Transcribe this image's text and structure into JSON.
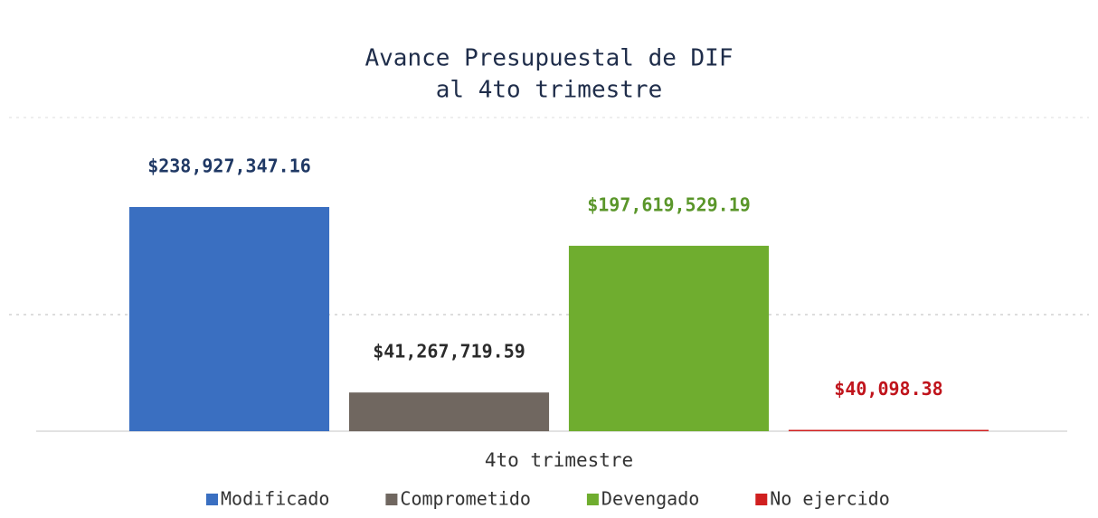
{
  "chart_data": {
    "type": "bar",
    "title": [
      "Avance Presupuestal de DIF",
      "al 4to trimestre"
    ],
    "categories": [
      "4to trimestre"
    ],
    "series": [
      {
        "name": "Modificado",
        "color": "#3a6fc1",
        "label_color": "#1f3864",
        "values": [
          238927347.16
        ],
        "value_labels": [
          "$238,927,347.16"
        ]
      },
      {
        "name": "Comprometido",
        "color": "#706760",
        "label_color": "#2b2b2b",
        "values": [
          41267719.59
        ],
        "value_labels": [
          "$41,267,719.59"
        ]
      },
      {
        "name": "Devengado",
        "color": "#6fad2f",
        "label_color": "#5a962a",
        "values": [
          197619529.19
        ],
        "value_labels": [
          "$197,619,529.19"
        ]
      },
      {
        "name": "No ejercido",
        "color": "#d01f1f",
        "label_color": "#c0141c",
        "values": [
          40098.38
        ],
        "value_labels": [
          "$40,098.38"
        ]
      }
    ],
    "ylim": [
      0,
      250000000
    ],
    "legend": "bottom"
  }
}
